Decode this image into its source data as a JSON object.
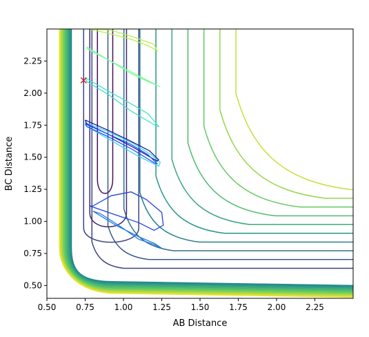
{
  "chart_data": {
    "type": "contour",
    "title": "",
    "xlabel": "AB Distance",
    "ylabel": "BC Distance",
    "xlim": [
      0.5,
      2.5
    ],
    "ylim": [
      0.4,
      2.5
    ],
    "xticks": [
      0.5,
      0.75,
      1.0,
      1.25,
      1.5,
      1.75,
      2.0,
      2.25
    ],
    "xtick_labels": [
      "0.50",
      "0.75",
      "1.00",
      "1.25",
      "1.50",
      "1.75",
      "2.00",
      "2.25"
    ],
    "yticks": [
      0.5,
      0.75,
      1.0,
      1.25,
      1.5,
      1.75,
      2.0,
      2.25
    ],
    "ytick_labels": [
      "0.50",
      "0.75",
      "1.00",
      "1.25",
      "1.50",
      "1.75",
      "2.00",
      "2.25"
    ],
    "grid": false,
    "colormap": "viridis",
    "potential_energy_surface": {
      "min_corner_level": 0.0,
      "asymptote_levels": [
        0.06,
        0.13,
        0.2,
        0.28,
        0.36,
        0.45,
        0.55,
        0.66,
        0.78,
        0.9
      ],
      "repulsive_wall_levels": 14
    },
    "trajectory_start": {
      "x": 0.74,
      "y": 2.1,
      "marker": "x",
      "color": "#d62728"
    },
    "trajectory_loops": [
      {
        "x": [
          0.75,
          0.88,
          1.03,
          1.16,
          1.23,
          1.22,
          1.05,
          0.9,
          0.76,
          0.75
        ],
        "y": [
          2.12,
          2.03,
          1.93,
          1.84,
          1.74,
          1.74,
          1.86,
          1.99,
          2.09,
          2.12
        ],
        "color": "#40e0d0"
      },
      {
        "x": [
          0.76,
          0.9,
          1.04,
          1.16,
          1.24,
          1.22,
          1.06,
          0.9,
          0.77,
          0.76
        ],
        "y": [
          2.36,
          2.26,
          2.16,
          2.09,
          2.05,
          2.06,
          2.16,
          2.26,
          2.34,
          2.36
        ],
        "color": "#7cfc9c"
      },
      {
        "x": [
          0.78,
          0.92,
          1.05,
          1.16,
          1.22,
          1.2,
          1.06,
          0.92,
          0.8
        ],
        "y": [
          2.5,
          2.46,
          2.42,
          2.37,
          2.33,
          2.38,
          2.44,
          2.49,
          2.5
        ],
        "color": "#b8f050"
      },
      {
        "x": [
          0.75,
          0.9,
          1.06,
          1.18,
          1.24,
          1.23,
          1.08,
          0.92,
          0.76,
          0.75
        ],
        "y": [
          1.77,
          1.7,
          1.61,
          1.52,
          1.46,
          1.43,
          1.52,
          1.63,
          1.74,
          1.77
        ],
        "color": "#38d6e8"
      },
      {
        "x": [
          0.75,
          0.9,
          1.04,
          1.17,
          1.23,
          1.22,
          1.06,
          0.9,
          0.76,
          0.75
        ],
        "y": [
          1.79,
          1.71,
          1.63,
          1.55,
          1.48,
          1.47,
          1.58,
          1.68,
          1.76,
          1.79
        ],
        "color": "#1a1aa0"
      },
      {
        "x": [
          0.75,
          0.9,
          1.05,
          1.16,
          1.22,
          1.21,
          1.06,
          0.9,
          0.76,
          0.75
        ],
        "y": [
          1.76,
          1.68,
          1.6,
          1.52,
          1.45,
          1.45,
          1.56,
          1.66,
          1.74,
          1.76
        ],
        "color": "#2050ff"
      },
      {
        "x": [
          0.78,
          0.95,
          1.1,
          1.2,
          1.26,
          1.25,
          1.15,
          1.05,
          0.92,
          0.8,
          0.78
        ],
        "y": [
          1.12,
          1.05,
          0.99,
          0.93,
          0.97,
          1.07,
          1.17,
          1.23,
          1.2,
          1.12,
          1.12
        ],
        "color": "#2040e0"
      },
      {
        "x": [
          0.8,
          0.95,
          1.1,
          1.2,
          1.25,
          1.2,
          1.1,
          0.98,
          0.85,
          0.8
        ],
        "y": [
          1.08,
          0.97,
          0.88,
          0.83,
          0.79,
          0.82,
          0.86,
          0.96,
          1.06,
          1.08
        ],
        "color": "#1e78e8"
      }
    ],
    "legend": "none"
  }
}
